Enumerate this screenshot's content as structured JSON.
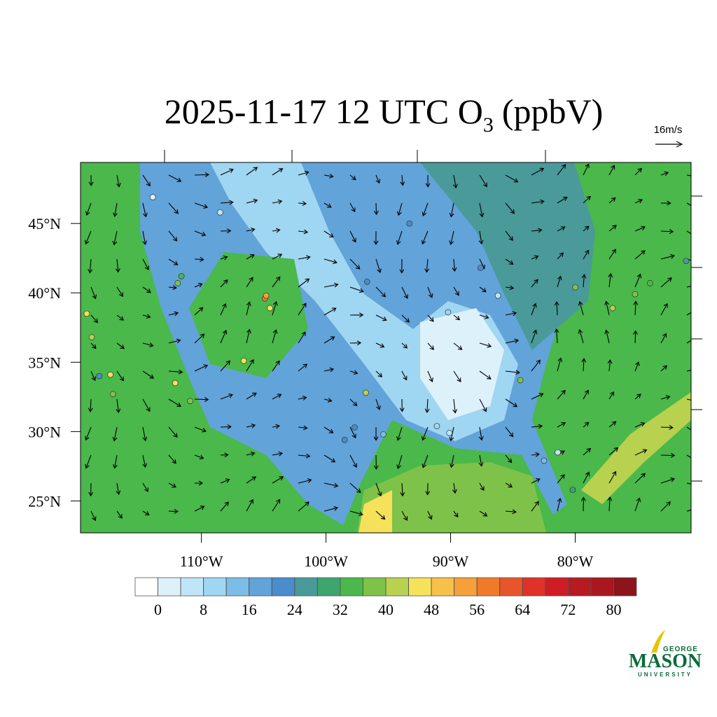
{
  "map": {
    "title": {
      "text": "2025-11-17 12 UTC O",
      "subscript": "3",
      "suffix": "(ppbV)"
    },
    "reference_vector": "16m/s",
    "xlim": [
      -119.7,
      -70.7
    ],
    "ylim": [
      22.7,
      49.4
    ],
    "xticks": [
      {
        "value": -110,
        "label": "110°W"
      },
      {
        "value": -100,
        "label": "100°W"
      },
      {
        "value": -90,
        "label": "90°W"
      },
      {
        "value": -80,
        "label": "80°W"
      }
    ],
    "yticks": [
      {
        "value": 25,
        "label": "25°N"
      },
      {
        "value": 30,
        "label": "30°N"
      },
      {
        "value": 35,
        "label": "35°N"
      },
      {
        "value": 40,
        "label": "40°N"
      },
      {
        "value": 45,
        "label": "45°N"
      }
    ],
    "colorbar": {
      "levels": [
        0,
        4,
        8,
        12,
        16,
        20,
        24,
        28,
        32,
        36,
        40,
        44,
        48,
        52,
        56,
        60,
        64,
        68,
        72,
        76,
        80
      ],
      "ticks": [
        0,
        8,
        16,
        24,
        32,
        40,
        48,
        56,
        64,
        72,
        80
      ],
      "colors": [
        "#ffffff",
        "#ddf1fa",
        "#bfe6f7",
        "#9fd6f2",
        "#7dbce6",
        "#62a3d9",
        "#4a8ccc",
        "#4a9a9a",
        "#3fa56f",
        "#4ab84a",
        "#7fc24a",
        "#b8d14f",
        "#f5e15a",
        "#f7c04a",
        "#f5a03a",
        "#f07a2a",
        "#e8552a",
        "#e03228",
        "#d01c24",
        "#b81a22",
        "#a8181e",
        "#8c141a"
      ]
    },
    "stations": [
      {
        "lon": -104.9,
        "lat": 39.6,
        "value": 58
      },
      {
        "lon": -104.8,
        "lat": 39.8,
        "value": 52
      },
      {
        "lon": -104.5,
        "lat": 38.9,
        "value": 46
      },
      {
        "lon": -111.9,
        "lat": 40.7,
        "value": 38
      },
      {
        "lon": -111.6,
        "lat": 41.2,
        "value": 34
      },
      {
        "lon": -119.2,
        "lat": 38.5,
        "value": 44
      },
      {
        "lon": -118.8,
        "lat": 36.8,
        "value": 40
      },
      {
        "lon": -117.3,
        "lat": 34.1,
        "value": 46
      },
      {
        "lon": -118.2,
        "lat": 34.0,
        "value": 20
      },
      {
        "lon": -117.1,
        "lat": 32.7,
        "value": 36
      },
      {
        "lon": -112.1,
        "lat": 33.5,
        "value": 44
      },
      {
        "lon": -110.9,
        "lat": 32.2,
        "value": 38
      },
      {
        "lon": -106.6,
        "lat": 35.1,
        "value": 46
      },
      {
        "lon": -96.8,
        "lat": 32.8,
        "value": 42
      },
      {
        "lon": -95.4,
        "lat": 29.8,
        "value": 14
      },
      {
        "lon": -98.5,
        "lat": 29.4,
        "value": 22
      },
      {
        "lon": -97.7,
        "lat": 30.3,
        "value": 20
      },
      {
        "lon": -91.1,
        "lat": 30.4,
        "value": 10
      },
      {
        "lon": -90.1,
        "lat": 29.9,
        "value": 6
      },
      {
        "lon": -82.5,
        "lat": 27.9,
        "value": 14
      },
      {
        "lon": -80.2,
        "lat": 25.8,
        "value": 30
      },
      {
        "lon": -81.4,
        "lat": 28.5,
        "value": 6
      },
      {
        "lon": -84.4,
        "lat": 33.7,
        "value": 38
      },
      {
        "lon": -87.6,
        "lat": 41.8,
        "value": 20
      },
      {
        "lon": -90.2,
        "lat": 38.6,
        "value": 8
      },
      {
        "lon": -86.2,
        "lat": 39.8,
        "value": 4
      },
      {
        "lon": -93.3,
        "lat": 45.0,
        "value": 22
      },
      {
        "lon": -96.7,
        "lat": 40.8,
        "value": 20
      },
      {
        "lon": -74.0,
        "lat": 40.7,
        "value": 34
      },
      {
        "lon": -75.2,
        "lat": 39.9,
        "value": 38
      },
      {
        "lon": -71.1,
        "lat": 42.3,
        "value": 24
      },
      {
        "lon": -77.0,
        "lat": 38.9,
        "value": 40
      },
      {
        "lon": -80.0,
        "lat": 40.4,
        "value": 36
      },
      {
        "lon": -108.5,
        "lat": 45.8,
        "value": 4
      },
      {
        "lon": -113.9,
        "lat": 46.9,
        "value": 0
      }
    ],
    "logo": {
      "top": "GEORGE",
      "name": "MASON",
      "bottom": "UNIVERSITY"
    }
  }
}
